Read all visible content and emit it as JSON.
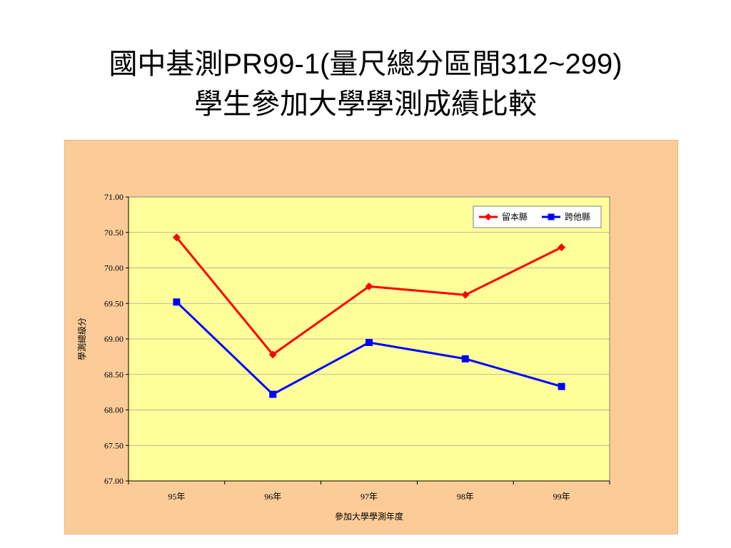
{
  "slide": {
    "title_line1": "國中基測PR99-1(量尺總分區間312~299)",
    "title_line2": "學生參加大學學測成績比較"
  },
  "chart_data": {
    "type": "line",
    "categories": [
      "95年",
      "96年",
      "97年",
      "98年",
      "99年"
    ],
    "series": [
      {
        "name": "留本縣",
        "values": [
          70.43,
          68.78,
          69.74,
          69.62,
          70.29
        ],
        "color": "#ff0000",
        "marker": "diamond"
      },
      {
        "name": "跨他縣",
        "values": [
          69.52,
          68.22,
          68.95,
          68.72,
          68.33
        ],
        "color": "#0000ff",
        "marker": "square"
      }
    ],
    "y_ticks": [
      "71.00",
      "70.50",
      "70.00",
      "69.50",
      "69.00",
      "68.50",
      "68.00",
      "67.50",
      "67.00"
    ],
    "ylim": [
      67.0,
      71.0
    ],
    "xlabel": "參加大學學測年度",
    "ylabel": "學測總級分",
    "grid": true,
    "legend_position": "top-right",
    "colors": {
      "outer_background": "#fccc98",
      "plot_background": "#ffff99"
    }
  }
}
